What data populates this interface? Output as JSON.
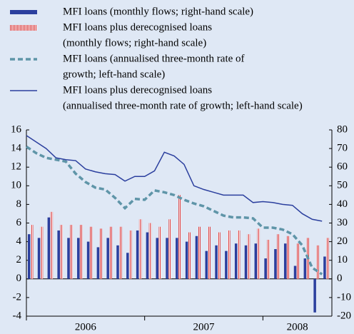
{
  "chart_data": {
    "type": "bar",
    "categories": [
      null,
      null,
      null,
      null,
      null,
      null,
      null,
      null,
      null,
      null,
      null,
      null,
      null,
      null,
      null,
      null,
      null,
      null,
      null,
      null,
      null,
      null,
      null,
      null,
      null,
      null,
      null,
      null,
      null,
      null,
      null
    ],
    "year_labels": [
      "2006",
      "2007",
      "2008"
    ],
    "series": [
      {
        "name": [
          "MFI loans (monthly flows; right-hand scale)"
        ],
        "type": "bar",
        "axis": "y2",
        "color": "#2b3f9e",
        "values": [
          24,
          22,
          33,
          26,
          22,
          22,
          20,
          17,
          22,
          18,
          14,
          26,
          25,
          22,
          22,
          22,
          20,
          23,
          15,
          18,
          15,
          19,
          18,
          19,
          11,
          16,
          19,
          7,
          11,
          -18,
          12
        ]
      },
      {
        "name": [
          "MFI loans plus derecognised loans",
          "(monthly flows; right-hand scale)"
        ],
        "type": "bar",
        "axis": "y2",
        "color": "#d9474a",
        "values": [
          29,
          28,
          36,
          29,
          29,
          29,
          28,
          27,
          28,
          28,
          26,
          32,
          30,
          28,
          32,
          45,
          25,
          28,
          28,
          25,
          26,
          26,
          24,
          27,
          21,
          24,
          23,
          19,
          22,
          18,
          22
        ]
      },
      {
        "name": [
          "MFI loans (annualised three-month rate of",
          "growth; left-hand scale)"
        ],
        "type": "line",
        "dashed": true,
        "color": "#5f95a8",
        "values": [
          14.2,
          13.5,
          13.0,
          12.8,
          12.6,
          11.3,
          10.4,
          9.8,
          9.6,
          8.7,
          7.6,
          8.6,
          8.5,
          9.5,
          9.3,
          9.0,
          8.5,
          8.1,
          7.8,
          7.3,
          6.8,
          6.6,
          6.6,
          6.5,
          5.5,
          5.5,
          5.3,
          4.8,
          3.6,
          1.2,
          0.5
        ]
      },
      {
        "name": [
          "MFI loans plus derecognised loans",
          "(annualised three-month rate of growth; left-hand scale)"
        ],
        "type": "line",
        "dashed": false,
        "color": "#2b3f9e",
        "values": [
          15.4,
          14.7,
          14.0,
          13.0,
          12.8,
          12.7,
          11.8,
          11.5,
          11.3,
          11.2,
          10.5,
          11.0,
          11.0,
          11.6,
          13.6,
          13.2,
          12.3,
          10.0,
          9.6,
          9.3,
          9.0,
          9.0,
          9.0,
          8.2,
          8.3,
          8.2,
          8.0,
          7.9,
          7.0,
          6.4,
          6.2
        ]
      }
    ],
    "ylim": [
      -4,
      16
    ],
    "yticks": [
      -4,
      -2,
      0,
      2,
      4,
      6,
      8,
      10,
      12,
      14,
      16
    ],
    "y2lim": [
      -20,
      80
    ],
    "y2ticks": [
      -20,
      -10,
      0,
      10,
      20,
      30,
      40,
      50,
      60,
      70,
      80
    ],
    "grid": false,
    "legend": "top"
  }
}
